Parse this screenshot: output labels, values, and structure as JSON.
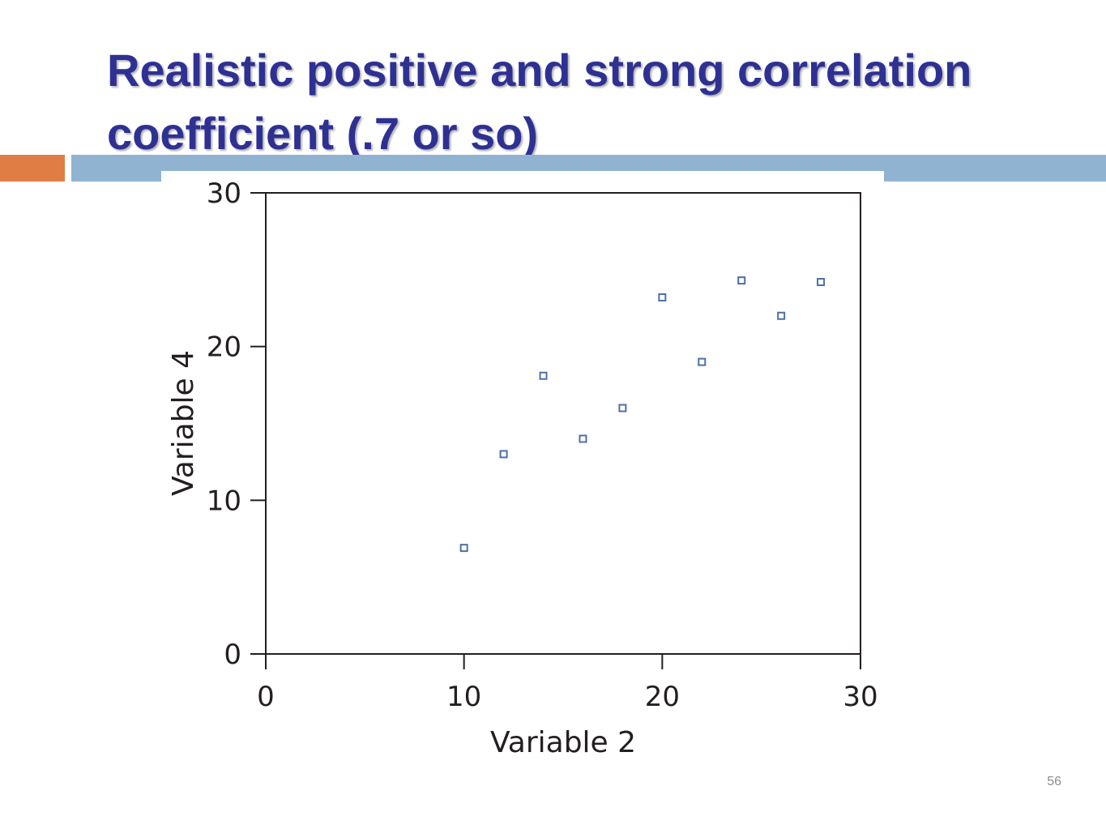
{
  "slide": {
    "title_line1": "Realistic positive and strong correlation",
    "title_line2": "coefficient (.7 or so)",
    "page_number": "56"
  },
  "colors": {
    "title": "#2e3192",
    "accent_orange": "#e07d45",
    "accent_blue": "#91b3d2",
    "marker": "#4f6fa8"
  },
  "chart_data": {
    "type": "scatter",
    "title": "",
    "xlabel": "Variable 2",
    "ylabel": "Variable 4",
    "xlim": [
      0,
      30
    ],
    "ylim": [
      0,
      30
    ],
    "xticks": [
      0,
      10,
      20,
      30
    ],
    "yticks": [
      0,
      10,
      20,
      30
    ],
    "grid": false,
    "marker": "open-square",
    "series": [
      {
        "points": [
          {
            "x": 10,
            "y": 6.9
          },
          {
            "x": 12,
            "y": 13
          },
          {
            "x": 14,
            "y": 18.1
          },
          {
            "x": 16,
            "y": 14
          },
          {
            "x": 18,
            "y": 16
          },
          {
            "x": 20,
            "y": 23.2
          },
          {
            "x": 22,
            "y": 19
          },
          {
            "x": 24,
            "y": 24.3
          },
          {
            "x": 26,
            "y": 22
          },
          {
            "x": 28,
            "y": 24.2
          }
        ]
      }
    ]
  }
}
